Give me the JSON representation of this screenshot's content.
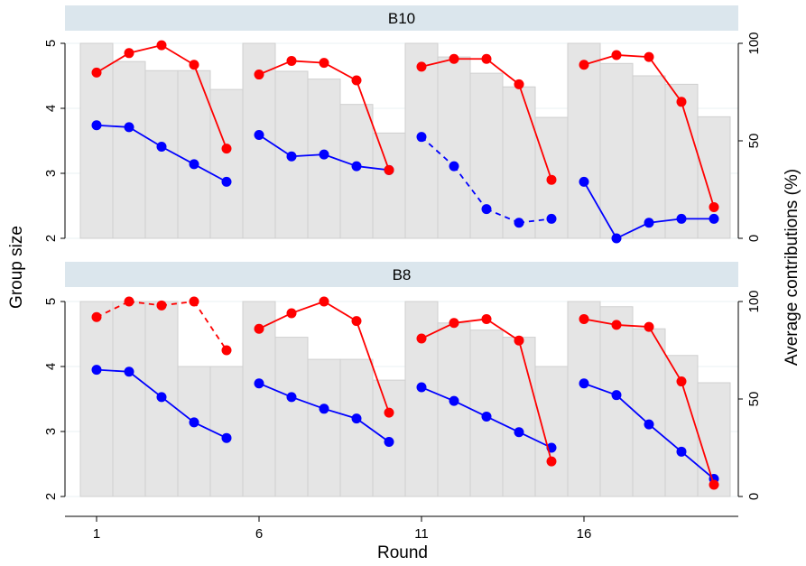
{
  "chart_data": {
    "type": "bar",
    "xlabel": "Round",
    "ylabel_left": "Group size",
    "ylabel_right": "Average contributions (%)",
    "x_ticks": [
      1,
      6,
      11,
      16
    ],
    "x_range": [
      0.5,
      20.5
    ],
    "y_left_range": [
      2,
      5
    ],
    "y_left_ticks": [
      2,
      3,
      4,
      5
    ],
    "y_right_range": [
      0,
      100
    ],
    "y_right_ticks": [
      0,
      50,
      100
    ],
    "colors": {
      "bar_fill": "#e5e5e5",
      "bar_edge": "#cfcfcf",
      "red_series": "#ff0000",
      "blue_series": "#0000ff",
      "panel_header": "#dbe6ed",
      "grid": "#eaf2f3"
    },
    "panels": [
      {
        "title": "B10",
        "rounds": [
          1,
          2,
          3,
          4,
          5,
          6,
          7,
          8,
          9,
          10,
          11,
          12,
          13,
          14,
          15,
          16,
          17,
          18,
          19,
          20
        ],
        "group_size": [
          5.0,
          4.72,
          4.58,
          4.58,
          4.29,
          5.0,
          4.57,
          4.45,
          4.06,
          3.62,
          5.0,
          4.79,
          4.54,
          4.33,
          3.86,
          5.0,
          4.69,
          4.5,
          4.37,
          3.87
        ],
        "red": [
          [
            85,
            95,
            99,
            89,
            46
          ],
          [
            84,
            91,
            90,
            81,
            35
          ],
          [
            88,
            92,
            92,
            79,
            30
          ],
          [
            89,
            94,
            93,
            70,
            16
          ]
        ],
        "blue": [
          [
            58,
            57,
            47,
            38,
            29
          ],
          [
            53,
            42,
            43,
            37,
            35
          ],
          [
            52,
            37,
            15,
            8,
            10
          ],
          [
            29,
            0,
            8,
            10,
            10
          ]
        ],
        "red_dashed_segments": [],
        "blue_dashed_segments": [
          10,
          11,
          12,
          13,
          14
        ]
      },
      {
        "title": "B8",
        "rounds": [
          1,
          2,
          3,
          4,
          5,
          6,
          7,
          8,
          9,
          10,
          11,
          12,
          13,
          14,
          15,
          16,
          17,
          18,
          19,
          20
        ],
        "group_size": [
          5.0,
          5.0,
          5.0,
          4.0,
          4.0,
          5.0,
          4.45,
          4.11,
          4.11,
          3.79,
          5.0,
          4.67,
          4.56,
          4.45,
          4.0,
          5.0,
          4.92,
          4.58,
          4.17,
          3.75
        ],
        "red": [
          [
            92,
            100,
            98,
            100,
            75
          ],
          [
            86,
            94,
            100,
            90,
            43
          ],
          [
            81,
            89,
            91,
            80,
            18
          ],
          [
            91,
            88,
            87,
            59,
            6
          ]
        ],
        "blue": [
          [
            65,
            64,
            51,
            38,
            30
          ],
          [
            58,
            51,
            45,
            40,
            28
          ],
          [
            56,
            49,
            41,
            33,
            25
          ],
          [
            58,
            52,
            37,
            23,
            9
          ]
        ],
        "red_dashed_segments": [
          0,
          1,
          2,
          3
        ],
        "blue_dashed_segments": []
      }
    ]
  }
}
